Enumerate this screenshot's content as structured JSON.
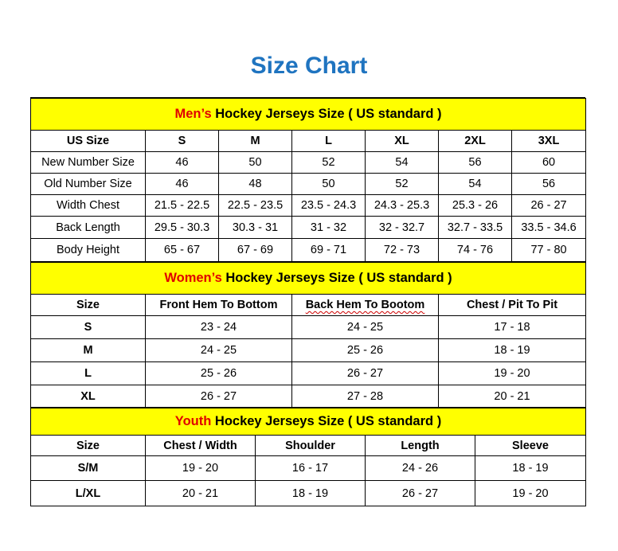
{
  "title": "Size Chart",
  "colors": {
    "title": "#1f74c0",
    "band": "#ffff00",
    "accent": "#e00000"
  },
  "mens": {
    "accent_label": "Men’s",
    "band_rest": " Hockey Jerseys Size ( US standard )",
    "headers": [
      "US Size",
      "S",
      "M",
      "L",
      "XL",
      "2XL",
      "3XL"
    ],
    "rows": [
      [
        "New Number Size",
        "46",
        "50",
        "52",
        "54",
        "56",
        "60"
      ],
      [
        "Old Number Size",
        "46",
        "48",
        "50",
        "52",
        "54",
        "56"
      ],
      [
        "Width Chest",
        "21.5 - 22.5",
        "22.5 - 23.5",
        "23.5 - 24.3",
        "24.3 - 25.3",
        "25.3 - 26",
        "26 - 27"
      ],
      [
        "Back Length",
        "29.5 - 30.3",
        "30.3 - 31",
        "31 - 32",
        "32 - 32.7",
        "32.7 - 33.5",
        "33.5 - 34.6"
      ],
      [
        "Body Height",
        "65 - 67",
        "67 - 69",
        "69 - 71",
        "72 - 73",
        "74 - 76",
        "77 - 80"
      ]
    ]
  },
  "womens": {
    "accent_label": "Women’s",
    "band_rest": " Hockey Jerseys Size ( US standard )",
    "headers": [
      "Size",
      "Front Hem To Bottom",
      "Back Hem To Bootom",
      "Chest / Pit To Pit"
    ],
    "rows": [
      [
        "S",
        "23 - 24",
        "24 - 25",
        "17 - 18"
      ],
      [
        "M",
        "24 - 25",
        "25 - 26",
        "18 - 19"
      ],
      [
        "L",
        "25 - 26",
        "26 - 27",
        "19 - 20"
      ],
      [
        "XL",
        "26 - 27",
        "27 - 28",
        "20 - 21"
      ]
    ]
  },
  "youth": {
    "accent_label": "Youth",
    "band_rest": " Hockey Jerseys Size ( US standard )",
    "headers": [
      "Size",
      "Chest / Width",
      "Shoulder",
      "Length",
      "Sleeve"
    ],
    "rows": [
      [
        "S/M",
        "19 - 20",
        "16 - 17",
        "24 - 26",
        "18 - 19"
      ],
      [
        "L/XL",
        "20 - 21",
        "18 - 19",
        "26 - 27",
        "19 - 20"
      ]
    ]
  }
}
